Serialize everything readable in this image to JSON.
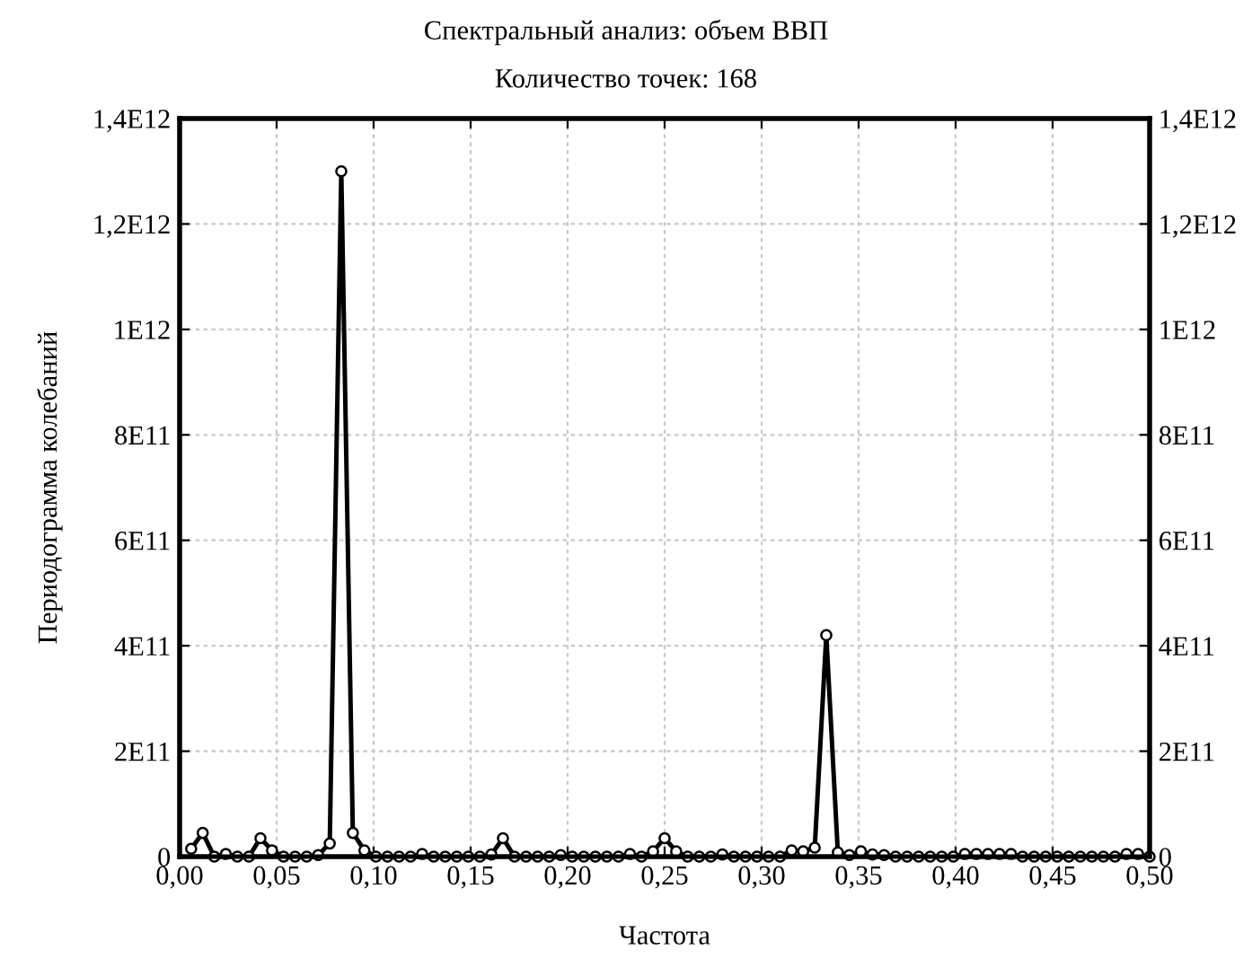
{
  "chart_data": {
    "type": "line",
    "title": "Спектральный анализ: объем ВВП",
    "subtitle": "Количество точек: 168",
    "xlabel": "Частота",
    "ylabel": "Периодограмма колебаний",
    "x": [
      0.00595,
      0.0119,
      0.01786,
      0.02381,
      0.02976,
      0.03571,
      0.04167,
      0.04762,
      0.05357,
      0.05952,
      0.06548,
      0.07143,
      0.07738,
      0.08333,
      0.08929,
      0.09524,
      0.10119,
      0.10714,
      0.1131,
      0.11905,
      0.125,
      0.13095,
      0.1369,
      0.14286,
      0.14881,
      0.15476,
      0.16071,
      0.16667,
      0.17262,
      0.17857,
      0.18452,
      0.19048,
      0.19643,
      0.20238,
      0.20833,
      0.21429,
      0.22024,
      0.22619,
      0.23214,
      0.2381,
      0.24405,
      0.25,
      0.25595,
      0.2619,
      0.26786,
      0.27381,
      0.27976,
      0.28571,
      0.29167,
      0.29762,
      0.30357,
      0.30952,
      0.31548,
      0.32143,
      0.32738,
      0.33333,
      0.33929,
      0.34524,
      0.35119,
      0.35714,
      0.3631,
      0.36905,
      0.375,
      0.38095,
      0.3869,
      0.39286,
      0.39881,
      0.40476,
      0.41071,
      0.41667,
      0.42262,
      0.42857,
      0.43452,
      0.44048,
      0.44643,
      0.45238,
      0.45833,
      0.46429,
      0.47024,
      0.47619,
      0.48214,
      0.4881,
      0.49405,
      0.5
    ],
    "series": [
      {
        "color": "#000000",
        "values": [
          15000000000,
          45000000000,
          0,
          5000000000,
          0,
          0,
          35000000000,
          12000000000,
          0,
          0,
          0,
          3000000000,
          25000000000,
          1300000000000,
          45000000000,
          12000000000,
          0,
          0,
          0,
          0,
          5000000000,
          0,
          0,
          0,
          0,
          0,
          4000000000,
          35000000000,
          0,
          0,
          0,
          0,
          3000000000,
          0,
          0,
          0,
          0,
          0,
          5000000000,
          0,
          10000000000,
          35000000000,
          10000000000,
          0,
          0,
          0,
          4000000000,
          0,
          0,
          0,
          0,
          0,
          12000000000,
          10000000000,
          17000000000,
          420000000000,
          8000000000,
          3000000000,
          10000000000,
          4000000000,
          3000000000,
          0,
          0,
          0,
          0,
          0,
          0,
          5000000000,
          5000000000,
          5000000000,
          5000000000,
          5000000000,
          0,
          0,
          0,
          0,
          0,
          0,
          0,
          0,
          0,
          5000000000,
          5000000000,
          0
        ]
      }
    ],
    "xlim": [
      0,
      0.5
    ],
    "xticks": [
      {
        "value": 0,
        "label": "0,00"
      },
      {
        "value": 0.05,
        "label": "0,05"
      },
      {
        "value": 0.1,
        "label": "0,10"
      },
      {
        "value": 0.15,
        "label": "0,15"
      },
      {
        "value": 0.2,
        "label": "0,20"
      },
      {
        "value": 0.25,
        "label": "0,25"
      },
      {
        "value": 0.3,
        "label": "0,30"
      },
      {
        "value": 0.35,
        "label": "0,35"
      },
      {
        "value": 0.4,
        "label": "0,40"
      },
      {
        "value": 0.45,
        "label": "0,45"
      },
      {
        "value": 0.5,
        "label": "0,50"
      }
    ],
    "ylim": [
      0,
      1400000000000
    ],
    "yticks": [
      0,
      {
        "value": 200000000000,
        "label": "2E11"
      },
      {
        "value": 400000000000,
        "label": "4E11"
      },
      {
        "value": 600000000000,
        "label": "6E11"
      },
      {
        "value": 800000000000,
        "label": "8E11"
      },
      {
        "value": 1000000000000,
        "label": "1E12"
      },
      {
        "value": 1200000000000,
        "label": "1,2E12"
      },
      {
        "value": 1400000000000,
        "label": "1,4E12"
      }
    ],
    "y2lim": [
      0,
      1400000000000
    ],
    "y2ticks": [
      0,
      {
        "value": 200000000000,
        "label": "2E11"
      },
      {
        "value": 400000000000,
        "label": "4E11"
      },
      {
        "value": 600000000000,
        "label": "6E11"
      },
      {
        "value": 800000000000,
        "label": "8E11"
      },
      {
        "value": 1000000000000,
        "label": "1E12"
      },
      {
        "value": 1200000000000,
        "label": "1,2E12"
      },
      {
        "value": 1400000000000,
        "label": "1,4E12"
      }
    ],
    "grid": true,
    "marker": "circle",
    "line_style": "solid"
  }
}
